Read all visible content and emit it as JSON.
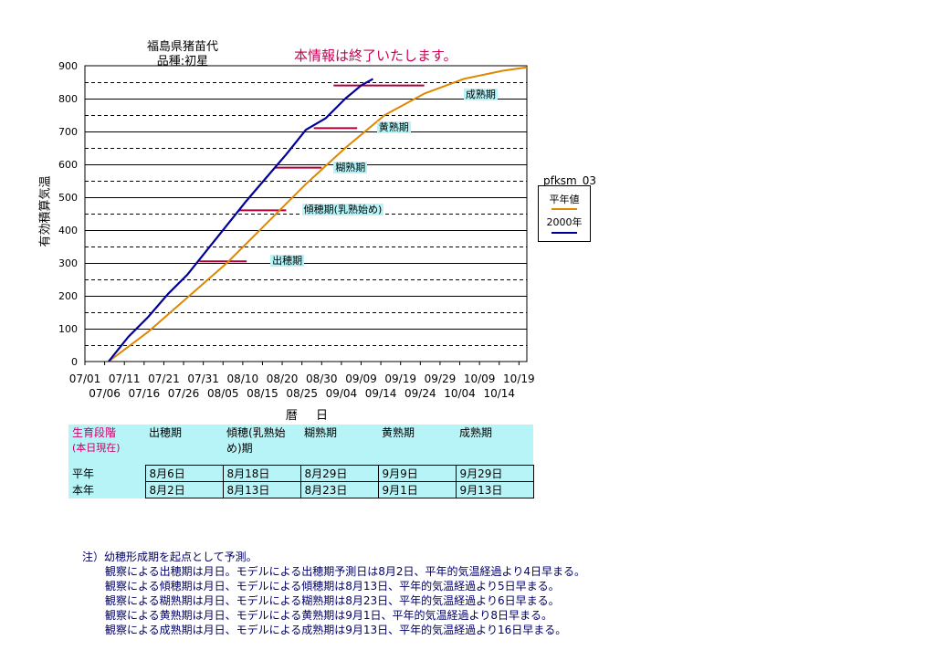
{
  "title_line1": "福島県猪苗代",
  "title_line2": "品種:初星",
  "notice": "本情報は終了いたします。",
  "chart_data": {
    "type": "line",
    "ylabel": "有効積算気温",
    "xlabel": "暦 日",
    "ylim": [
      0,
      900
    ],
    "yticks": [
      "0",
      "100",
      "200",
      "300",
      "400",
      "500",
      "600",
      "700",
      "800",
      "900"
    ],
    "xticks_row1": [
      "07/01",
      "07/11",
      "07/21",
      "07/31",
      "08/10",
      "08/20",
      "08/30",
      "09/09",
      "09/19",
      "09/29",
      "10/09",
      "10/19"
    ],
    "xticks_row2": [
      "07/06",
      "07/16",
      "07/26",
      "08/05",
      "08/15",
      "08/25",
      "09/04",
      "09/14",
      "09/24",
      "10/04",
      "10/14"
    ],
    "x_start": "07/01",
    "x_end": "10/21",
    "legend_title": "pfksm_03",
    "series": [
      {
        "name": "平年値",
        "color": "#dd8800",
        "x": [
          "07/07",
          "07/17",
          "07/27",
          "08/06",
          "08/16",
          "08/26",
          "09/05",
          "09/15",
          "09/25",
          "10/05",
          "10/15",
          "10/21"
        ],
        "y": [
          0,
          90,
          195,
          300,
          420,
          540,
          650,
          750,
          815,
          860,
          885,
          895
        ]
      },
      {
        "name": "2000年",
        "color": "#000099",
        "x": [
          "07/07",
          "07/12",
          "07/17",
          "07/22",
          "07/27",
          "08/01",
          "08/06",
          "08/11",
          "08/16",
          "08/21",
          "08/26",
          "08/31",
          "09/05",
          "09/07",
          "09/09",
          "09/12"
        ],
        "y": [
          0,
          75,
          135,
          205,
          265,
          340,
          415,
          490,
          560,
          630,
          705,
          740,
          800,
          820,
          840,
          860
        ]
      }
    ],
    "stages": [
      {
        "label": "出穂期",
        "value": 305,
        "x_from": "07/30",
        "x_to": "08/11",
        "label_at": "08/17"
      },
      {
        "label": "傾穂期(乳熟始め)",
        "value": 460,
        "x_from": "08/09",
        "x_to": "08/21",
        "label_at": "08/25"
      },
      {
        "label": "糊熟期",
        "value": 590,
        "x_from": "08/18",
        "x_to": "08/30",
        "label_at": "09/02"
      },
      {
        "label": "黄熟期",
        "value": 710,
        "x_from": "08/28",
        "x_to": "09/08",
        "label_at": "09/13"
      },
      {
        "label": "成熟期",
        "value": 840,
        "x_from": "09/02",
        "x_to": "09/25",
        "label_at": "10/05"
      }
    ],
    "stage_color": "#b0003a"
  },
  "table": {
    "corner_line1": "生育段階",
    "corner_line2": "(本日現在)",
    "headers": [
      "出穂期",
      "傾穂(乳熟始め)期",
      "糊熟期",
      "黄熟期",
      "成熟期"
    ],
    "rows": [
      {
        "label": "平年",
        "values": [
          "8月6日",
          "8月18日",
          "8月29日",
          "9月9日",
          "9月29日"
        ]
      },
      {
        "label": "本年",
        "values": [
          "8月2日",
          "8月13日",
          "8月23日",
          "9月1日",
          "9月13日"
        ]
      }
    ]
  },
  "notes": {
    "head": "注）幼穂形成期を起点として予測。",
    "lines": [
      "観察による出穂期は月日。モデルによる出穂期予測日は8月2日、平年的気温経過より4日早まる。",
      "観察による傾穂期は月日、モデルによる傾穂期は8月13日、平年的気温経過より5日早まる。",
      "観察による糊熟期は月日、モデルによる糊熟期は8月23日、平年的気温経過より6日早まる。",
      "観察による黄熟期は月日、モデルによる黄熟期は9月1日、平年的気温経過より8日早まる。",
      "観察による成熟期は月日、モデルによる成熟期は9月13日、平年的気温経過より16日早まる。"
    ]
  }
}
